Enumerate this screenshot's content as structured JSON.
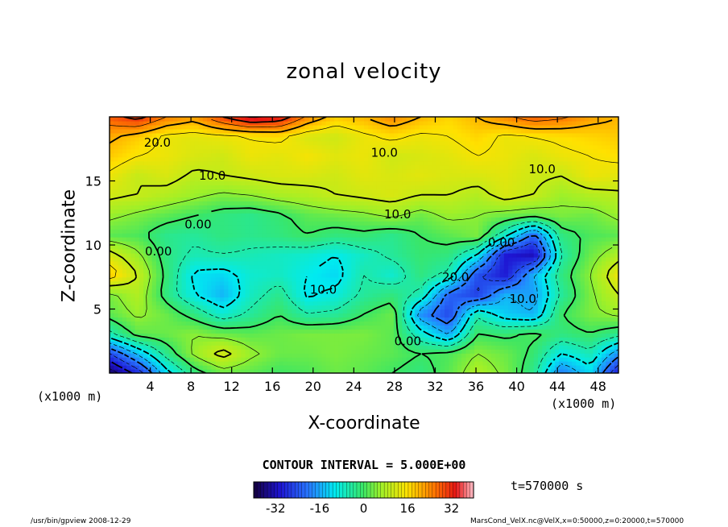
{
  "chart_data": {
    "type": "heatmap",
    "title": "zonal velocity",
    "xlabel": "X-coordinate",
    "ylabel": "Z-coordinate",
    "x_unit": "(x1000 m)",
    "xlim": [
      0,
      50
    ],
    "ylim": [
      0,
      20
    ],
    "x_ticks": [
      4,
      8,
      12,
      16,
      20,
      24,
      28,
      32,
      36,
      40,
      44,
      48
    ],
    "y_ticks": [
      5,
      10,
      15
    ],
    "contour_interval": "CONTOUR INTERVAL = 5.000E+00",
    "time_label": "t=570000 s",
    "colorbar": {
      "min": -40,
      "max": 40,
      "ticks": [
        -32,
        -16,
        0,
        16,
        32
      ]
    },
    "contour_labels": [
      {
        "text": "20.0",
        "x": 4.7,
        "y": 18.0
      },
      {
        "text": "10.0",
        "x": 27.0,
        "y": 17.2
      },
      {
        "text": "10.0",
        "x": 42.5,
        "y": 15.9
      },
      {
        "text": "10.0",
        "x": 10.1,
        "y": 15.4
      },
      {
        "text": "10.0",
        "x": 28.3,
        "y": 12.4
      },
      {
        "text": "0.00",
        "x": 8.7,
        "y": 11.6
      },
      {
        "text": "0.00",
        "x": 4.8,
        "y": 9.5
      },
      {
        "text": "0.00",
        "x": 38.5,
        "y": 10.2
      },
      {
        "text": "20.0",
        "x": 34.0,
        "y": 7.5
      },
      {
        "text": "10.0",
        "x": 21.0,
        "y": 6.5
      },
      {
        "text": "10.0",
        "x": 40.6,
        "y": 5.8
      },
      {
        "text": "0.00",
        "x": 29.3,
        "y": 2.5
      }
    ],
    "value_field": [
      [
        -38,
        -28,
        -12,
        -2,
        3,
        2,
        0,
        1,
        3,
        2,
        0,
        -2,
        2,
        8,
        4,
        -3,
        -20,
        -12,
        -30
      ],
      [
        -25,
        -14,
        -3,
        6,
        12,
        6,
        3,
        3,
        4,
        3,
        2,
        0,
        1,
        5,
        3,
        -1,
        -10,
        -6,
        -18
      ],
      [
        -6,
        2,
        3,
        5,
        3,
        2,
        3,
        4,
        4,
        4,
        2,
        -8,
        -16,
        0,
        -1,
        1,
        -2,
        0,
        -3
      ],
      [
        2,
        6,
        3,
        -2,
        -8,
        -4,
        0,
        -5,
        -4,
        0,
        3,
        -18,
        -25,
        -6,
        -13,
        -15,
        0,
        4,
        6
      ],
      [
        4,
        8,
        -2,
        -10,
        -15,
        -7,
        -3,
        -11,
        -9,
        -4,
        -2,
        -6,
        -22,
        -26,
        -15,
        -17,
        -4,
        4,
        10
      ],
      [
        18,
        10,
        -1,
        -11,
        -12,
        -8,
        -7,
        -10,
        -12,
        -5,
        -8,
        -2,
        -6,
        -24,
        -30,
        -15,
        -2,
        5,
        14
      ],
      [
        12,
        6,
        -2,
        -6,
        -5,
        -6,
        -7,
        -8,
        -10,
        -7,
        -4,
        -1,
        -2,
        -10,
        -30,
        -32,
        -5,
        3,
        8
      ],
      [
        2,
        1,
        -3,
        -4,
        -2,
        -3,
        -2,
        0,
        -2,
        -1,
        -3,
        0,
        2,
        4,
        -8,
        -22,
        -2,
        1,
        2
      ],
      [
        6,
        4,
        2,
        0,
        -2,
        -3,
        -1,
        2,
        3,
        4,
        6,
        3,
        6,
        5,
        3,
        2,
        4,
        3,
        6
      ],
      [
        11,
        10,
        8,
        6,
        4,
        5,
        7,
        8,
        10,
        11,
        12,
        10,
        10,
        8,
        12,
        10,
        6,
        8,
        9
      ],
      [
        14,
        10,
        12,
        9,
        10,
        11,
        12,
        12,
        11,
        13,
        12,
        13,
        12,
        12,
        13,
        11,
        10,
        14,
        13
      ],
      [
        18,
        15,
        14,
        12,
        11,
        14,
        13,
        15,
        13,
        14,
        11,
        12,
        13,
        15,
        14,
        12,
        14,
        15,
        16
      ],
      [
        21,
        18,
        14,
        13,
        14,
        15,
        16,
        12,
        11,
        14,
        16,
        14,
        15,
        17,
        14,
        15,
        16,
        17,
        18
      ],
      [
        28,
        32,
        25,
        22,
        30,
        36,
        34,
        24,
        18,
        20,
        24,
        20,
        17,
        20,
        24,
        28,
        26,
        22,
        20
      ]
    ]
  },
  "footer": {
    "left": "/usr/bin/gpview   2008-12-29",
    "right": "MarsCond_VelX.nc@VelX,x=0:50000,z=0:20000,t=570000"
  }
}
